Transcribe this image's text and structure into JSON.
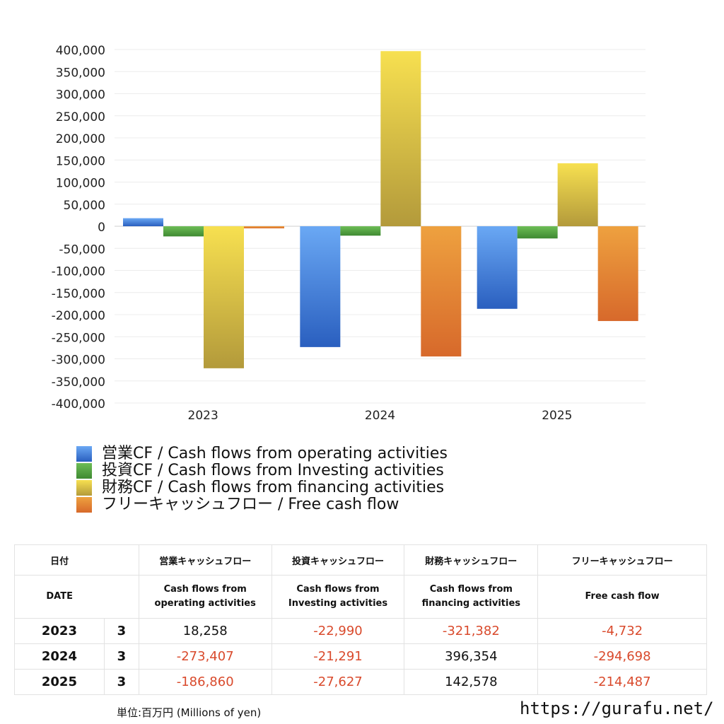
{
  "chart_data": {
    "type": "bar",
    "categories": [
      "2023",
      "2024",
      "2025"
    ],
    "ylim": [
      -400000,
      400000
    ],
    "ytick_step": 50000,
    "grid": true,
    "legend_placement": "bottom",
    "series": [
      {
        "name": "営業CF / Cash flows from operating activities",
        "color": "#3f7fd6",
        "values": [
          18258,
          -273407,
          -186860
        ]
      },
      {
        "name": "投資CF / Cash flows from Investing activities",
        "color": "#4e9f3d",
        "values": [
          -22990,
          -21291,
          -27627
        ]
      },
      {
        "name": "財務CF / Cash flows from financing activities",
        "color": "#d9c244",
        "values": [
          -321382,
          396354,
          142578
        ]
      },
      {
        "name": "フリーキャッシュフロー / Free cash flow",
        "color": "#e07f2e",
        "values": [
          -4732,
          -294698,
          -214487
        ]
      }
    ]
  },
  "table": {
    "header_ja": [
      "日付",
      "営業キャッシュフロー",
      "投資キャッシュフロー",
      "財務キャッシュフロー",
      "フリーキャッシュフロー"
    ],
    "header_en": [
      "DATE",
      "Cash flows from operating activities",
      "Cash flows from Investing activities",
      "Cash flows from financing activities",
      "Free cash flow"
    ],
    "rows": [
      {
        "year": "2023",
        "count": "3",
        "op": "18,258",
        "inv": "-22,990",
        "fin": "-321,382",
        "fcf": "-4,732"
      },
      {
        "year": "2024",
        "count": "3",
        "op": "-273,407",
        "inv": "-21,291",
        "fin": "396,354",
        "fcf": "-294,698"
      },
      {
        "year": "2025",
        "count": "3",
        "op": "-186,860",
        "inv": "-27,627",
        "fin": "142,578",
        "fcf": "-214,487"
      }
    ]
  },
  "footer": {
    "unit": "単位:百万円 (Millions of yen)",
    "site": "https://gurafu.net/"
  }
}
